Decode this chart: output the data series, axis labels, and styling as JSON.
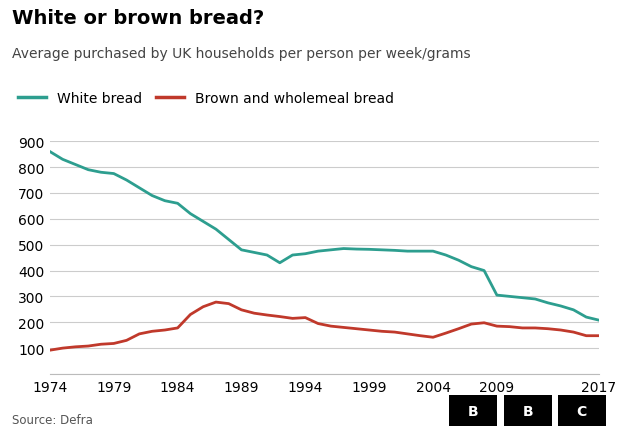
{
  "title": "White or brown bread?",
  "subtitle": "Average purchased by UK households per person per week/grams",
  "source": "Source: Defra",
  "white_bread": {
    "label": "White bread",
    "color": "#2d9e8f",
    "years": [
      1974,
      1975,
      1976,
      1977,
      1978,
      1979,
      1980,
      1981,
      1982,
      1983,
      1984,
      1985,
      1986,
      1987,
      1988,
      1989,
      1990,
      1991,
      1992,
      1993,
      1994,
      1995,
      1996,
      1997,
      1998,
      1999,
      2000,
      2001,
      2002,
      2003,
      2004,
      2005,
      2006,
      2007,
      2008,
      2009,
      2010,
      2011,
      2012,
      2013,
      2014,
      2015,
      2016,
      2017
    ],
    "values": [
      860,
      830,
      810,
      790,
      780,
      775,
      750,
      720,
      690,
      670,
      660,
      620,
      590,
      560,
      520,
      480,
      470,
      460,
      430,
      460,
      465,
      475,
      480,
      485,
      483,
      482,
      480,
      478,
      475,
      475,
      475,
      460,
      440,
      415,
      400,
      305,
      300,
      295,
      290,
      275,
      263,
      248,
      220,
      208
    ],
    "linewidth": 2.0
  },
  "brown_bread": {
    "label": "Brown and wholemeal bread",
    "color": "#c0392b",
    "years": [
      1974,
      1975,
      1976,
      1977,
      1978,
      1979,
      1980,
      1981,
      1982,
      1983,
      1984,
      1985,
      1986,
      1987,
      1988,
      1989,
      1990,
      1991,
      1992,
      1993,
      1994,
      1995,
      1996,
      1997,
      1998,
      1999,
      2000,
      2001,
      2002,
      2003,
      2004,
      2005,
      2006,
      2007,
      2008,
      2009,
      2010,
      2011,
      2012,
      2013,
      2014,
      2015,
      2016,
      2017
    ],
    "values": [
      92,
      100,
      105,
      108,
      115,
      118,
      130,
      155,
      165,
      170,
      178,
      230,
      260,
      278,
      272,
      248,
      235,
      228,
      222,
      215,
      218,
      195,
      185,
      180,
      175,
      170,
      165,
      162,
      155,
      148,
      142,
      158,
      175,
      193,
      198,
      185,
      183,
      178,
      178,
      175,
      170,
      162,
      148,
      148
    ],
    "linewidth": 2.0
  },
  "xlim": [
    1974,
    2017
  ],
  "ylim": [
    0,
    900
  ],
  "yticks": [
    0,
    100,
    200,
    300,
    400,
    500,
    600,
    700,
    800,
    900
  ],
  "xticks": [
    1974,
    1979,
    1984,
    1989,
    1994,
    1999,
    2004,
    2009,
    2017
  ],
  "background_color": "#ffffff",
  "grid_color": "#cccccc",
  "title_fontsize": 14,
  "subtitle_fontsize": 10,
  "legend_fontsize": 10,
  "tick_fontsize": 10
}
